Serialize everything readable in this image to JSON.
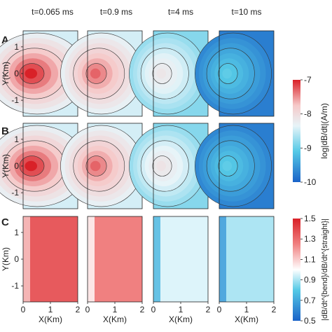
{
  "chart_data": {
    "type": "heatmap",
    "columns": [
      "t=0.065 ms",
      "t=0.9 ms",
      "t=4 ms",
      "t=10 ms"
    ],
    "rows": [
      {
        "label": "A",
        "colorbar": "A"
      },
      {
        "label": "B",
        "colorbar": "A"
      },
      {
        "label": "C",
        "colorbar": "C"
      }
    ],
    "xlabel": "X(Km)",
    "ylabel": "Y(Km)",
    "xticks": [
      0,
      1,
      2
    ],
    "yticks": [
      1,
      0,
      -1
    ],
    "xlim": [
      0,
      2
    ],
    "ylim": [
      -1.6,
      1.6
    ],
    "colorbars": {
      "A": {
        "label": "log|dB/dt|(A/m)",
        "ticks": [
          -7,
          -8,
          -9,
          -10
        ],
        "range": [
          -10,
          -7
        ],
        "colors": [
          "#1a63c8",
          "#55c9e6",
          "#e7f4f8",
          "#f6c9c9",
          "#d92128"
        ]
      },
      "C": {
        "label": "|dB/dt^{bend}/dB/dt^{straight}|",
        "ticks": [
          "1.5",
          "1.3",
          "1.1",
          "0.9",
          "0.7",
          "0.5"
        ],
        "range": [
          0.5,
          1.5
        ],
        "colors": [
          "#1a63c8",
          "#55c9e6",
          "#ffffff",
          "#f08080",
          "#d92128"
        ]
      }
    },
    "panels": [
      [
        {
          "peak": -7.0,
          "edge": -8.6,
          "w": 0.9
        },
        {
          "peak": -7.3,
          "edge": -8.6,
          "w": 0.75
        },
        {
          "peak": -8.25,
          "edge": -9.0,
          "w": 0.7
        },
        {
          "peak": -9.2,
          "edge": -9.8,
          "w": 0.7
        }
      ],
      [
        {
          "peak": -7.0,
          "edge": -8.6,
          "w": 0.9
        },
        {
          "peak": -7.3,
          "edge": -8.6,
          "w": 0.75
        },
        {
          "peak": -8.2,
          "edge": -9.0,
          "w": 0.7
        },
        {
          "peak": -9.2,
          "edge": -9.8,
          "w": 0.7
        }
      ],
      [
        {
          "mean": 1.35
        },
        {
          "mean": 1.25
        },
        {
          "mean": 0.95
        },
        {
          "mean": 0.88
        }
      ]
    ]
  }
}
